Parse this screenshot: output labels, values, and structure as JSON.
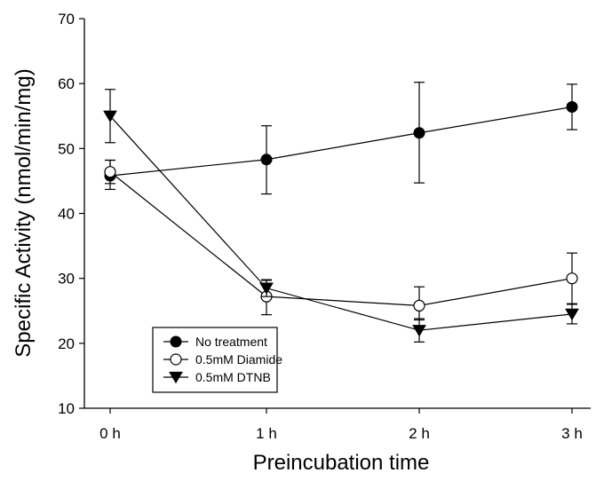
{
  "chart_data": {
    "type": "line",
    "title": "",
    "xlabel": "Preincubation time",
    "ylabel": "Specific Activity (nmol/min/mg)",
    "categories": [
      "0 h",
      "1 h",
      "2 h",
      "3 h"
    ],
    "ylim": [
      10,
      70
    ],
    "yticks": [
      10,
      20,
      30,
      40,
      50,
      60,
      70
    ],
    "grid": false,
    "legend_position": "bottom-left",
    "series": [
      {
        "name": "No treatment",
        "marker": "filled-circle",
        "values": [
          45.8,
          48.3,
          52.4,
          56.4
        ],
        "err_upper": [
          2.4,
          5.2,
          7.8,
          3.5
        ],
        "err_lower": [
          2.1,
          5.3,
          7.7,
          3.5
        ]
      },
      {
        "name": "0.5mM Diamide",
        "marker": "open-circle",
        "values": [
          46.4,
          27.2,
          25.8,
          30.0
        ],
        "err_upper": [
          1.8,
          2.5,
          2.9,
          3.9
        ],
        "err_lower": [
          1.8,
          2.8,
          2.2,
          3.9
        ]
      },
      {
        "name": "0.5mM DTNB",
        "marker": "filled-triangle-down",
        "values": [
          55.0,
          28.5,
          22.0,
          24.5
        ],
        "err_upper": [
          4.1,
          1.3,
          1.8,
          1.5
        ],
        "err_lower": [
          4.1,
          1.3,
          1.8,
          1.5
        ]
      }
    ]
  }
}
